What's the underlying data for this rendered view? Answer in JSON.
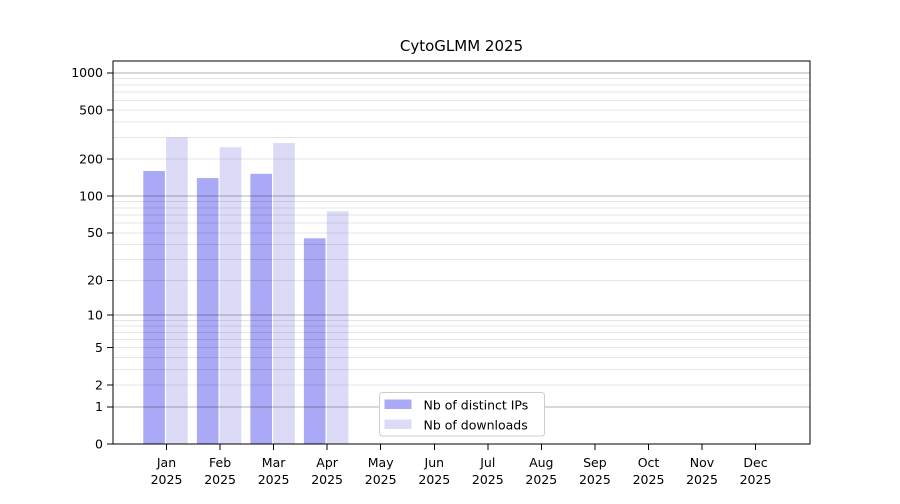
{
  "chart_data": {
    "type": "bar",
    "title": "CytoGLMM 2025",
    "months": [
      "Jan",
      "Feb",
      "Mar",
      "Apr",
      "May",
      "Jun",
      "Jul",
      "Aug",
      "Sep",
      "Oct",
      "Nov",
      "Dec"
    ],
    "year": "2025",
    "series": [
      {
        "name": "Nb of distinct IPs",
        "color": "#a9a9f6",
        "values": [
          160,
          140,
          152,
          45,
          0,
          0,
          0,
          0,
          0,
          0,
          0,
          0
        ]
      },
      {
        "name": "Nb of downloads",
        "color": "#dbdbf8",
        "values": [
          300,
          250,
          270,
          75,
          0,
          0,
          0,
          0,
          0,
          0,
          0,
          0
        ]
      }
    ],
    "yscale": "log1p",
    "yticks": [
      0,
      1,
      2,
      5,
      10,
      20,
      50,
      100,
      200,
      500,
      1000
    ],
    "ylim": [
      0,
      1250
    ],
    "xlabel": "",
    "ylabel": "",
    "grid": {
      "axis": "y",
      "major_values": [
        1,
        10,
        100,
        1000
      ],
      "minor": true,
      "on_top_of_bars": true
    },
    "legend": {
      "position": "bottom-center",
      "border_color": "#cccccc",
      "background": "#ffffff"
    },
    "colors": {
      "spine": "#000000",
      "grid_major": "rgba(0,0,0,0.30)",
      "grid_minor": "rgba(0,0,0,0.10)",
      "text": "#000000"
    }
  }
}
